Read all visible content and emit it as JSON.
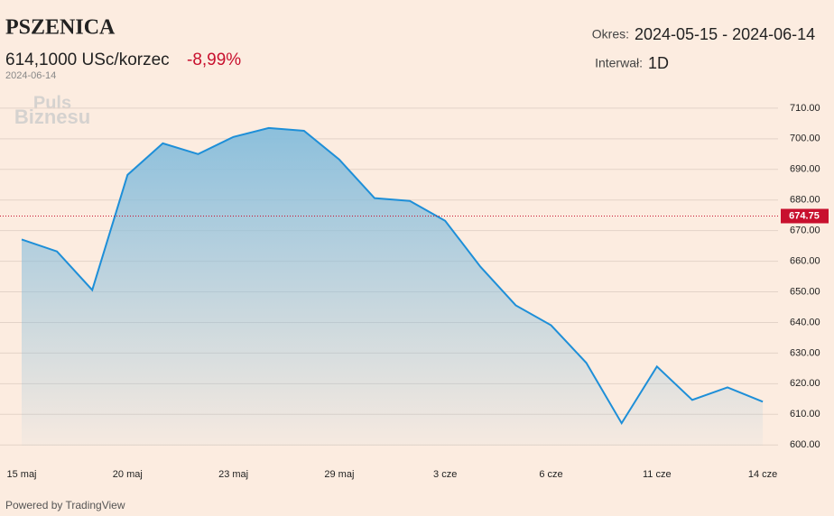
{
  "header": {
    "title": "PSZENICA",
    "price": "614,1000 USc/korzec",
    "change": "-8,99%",
    "date": "2024-06-14",
    "period_label": "Okres:",
    "period": "2024-05-15 - 2024-06-14",
    "interval_label": "Interwał:",
    "interval": "1D",
    "watermark_top": "Puls",
    "watermark_bottom": "Biznesu"
  },
  "footer": "Powered by TradingView",
  "chart_data": {
    "type": "area",
    "categories": [
      "15 maj",
      null,
      null,
      "20 maj",
      null,
      null,
      "23 maj",
      null,
      null,
      "29 maj",
      null,
      null,
      "3 cze",
      null,
      null,
      "6 cze",
      null,
      null,
      "11 cze",
      null,
      null,
      "14 cze"
    ],
    "series": [
      {
        "color": "#1e8fd8",
        "values": [
          667.1,
          663.2,
          650.6,
          688.2,
          698.5,
          695.0,
          700.6,
          703.5,
          702.6,
          693.2,
          680.6,
          679.7,
          673.2,
          658.2,
          645.6,
          639.1,
          626.8,
          607.1,
          625.6,
          614.7,
          618.8,
          614.1
        ]
      }
    ],
    "price_line": 674.75,
    "price_line_color": "#c8102e",
    "ylim": [
      598,
      713.5
    ],
    "yticks": [
      {
        "value": 600,
        "label": "600.00"
      },
      {
        "value": 610,
        "label": "610.00"
      },
      {
        "value": 620,
        "label": "620.00"
      },
      {
        "value": 630,
        "label": "630.00"
      },
      {
        "value": 640,
        "label": "640.00"
      },
      {
        "value": 650,
        "label": "650.00"
      },
      {
        "value": 660,
        "label": "660.00"
      },
      {
        "value": 670,
        "label": "670.00"
      },
      {
        "value": 680,
        "label": "680.00"
      },
      {
        "value": 690,
        "label": "690.00"
      },
      {
        "value": 700,
        "label": "700.00"
      },
      {
        "value": 710,
        "label": "710.00"
      }
    ],
    "grid": true
  }
}
